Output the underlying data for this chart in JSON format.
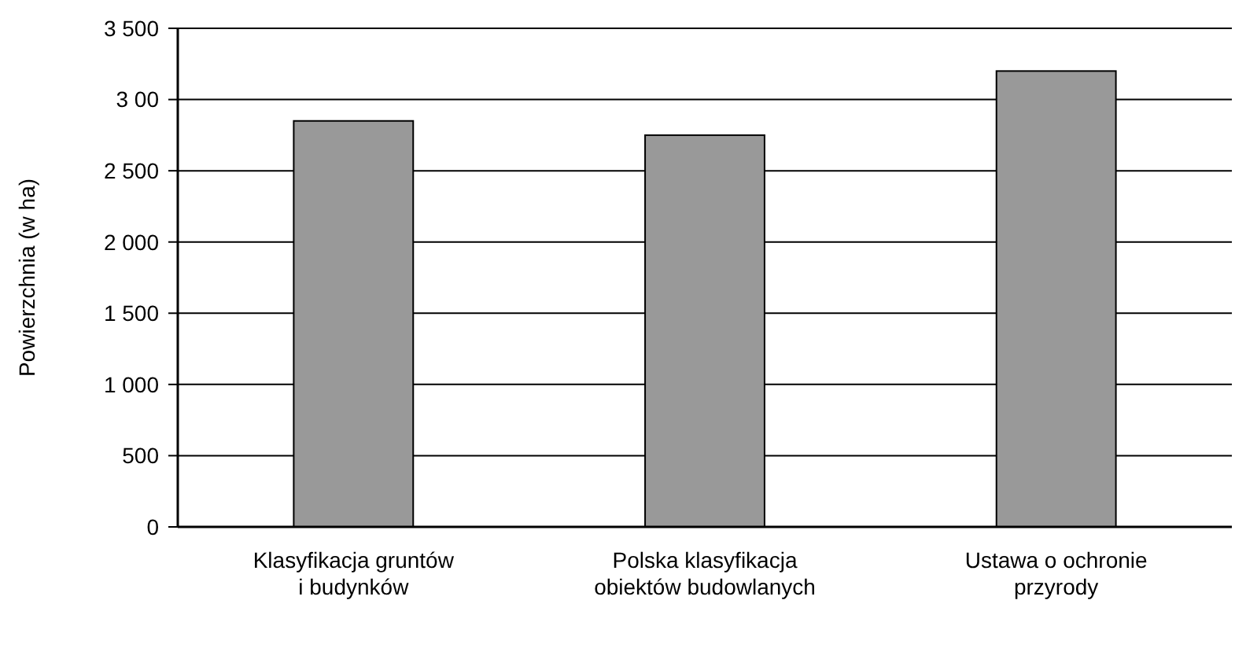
{
  "chart_data": {
    "type": "bar",
    "ylabel": "Powierzchnia (w ha)",
    "categories": [
      "Klasyfikacja gruntów i budynków",
      "Polska klasyfikacja obiektów budowlanych",
      "Ustawa o ochronie przyrody"
    ],
    "values": [
      2850,
      2750,
      3200
    ],
    "color": "#999999",
    "ylim": [
      0,
      3500
    ],
    "yticks": [
      0,
      {
        "value": 500,
        "label": "500"
      },
      {
        "value": 1000,
        "label": "1 000"
      },
      {
        "value": 1500,
        "label": "1 500"
      },
      {
        "value": 2000,
        "label": "2 000"
      },
      {
        "value": 2500,
        "label": "2 500"
      },
      {
        "value": 3000,
        "label": "3 00"
      },
      {
        "value": 3500,
        "label": "3 500"
      }
    ],
    "grid": "y"
  }
}
